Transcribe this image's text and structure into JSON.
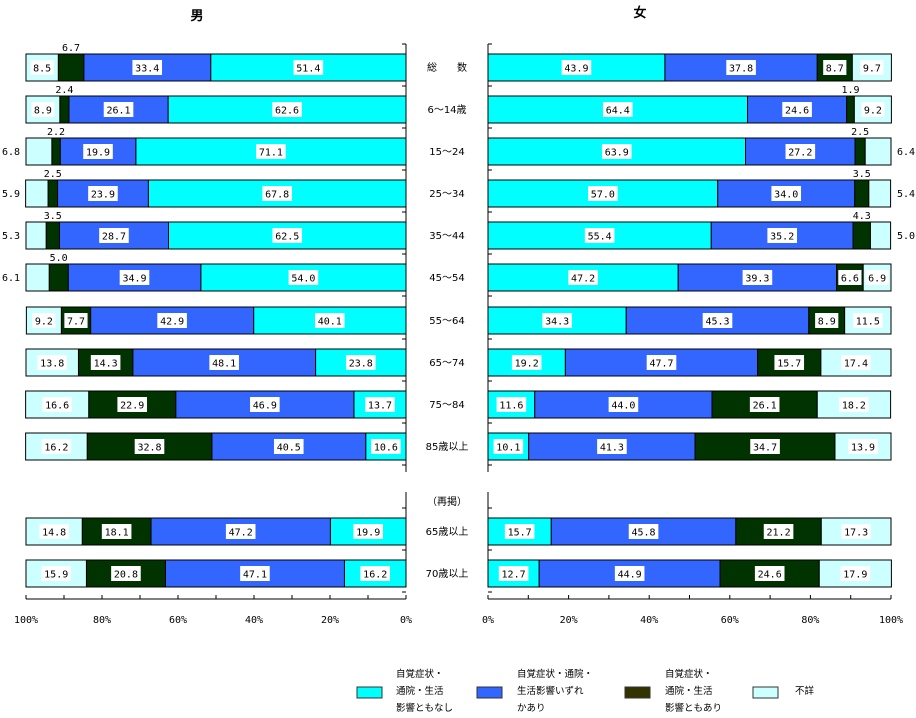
{
  "chart_data": {
    "type": "bar",
    "orientation": "horizontal",
    "stacked": true,
    "percent": true,
    "categories": [
      "総　　数",
      "6〜14歳",
      "15〜24",
      "25〜34",
      "35〜44",
      "45〜54",
      "55〜64",
      "65〜74",
      "75〜84",
      "85歳以上",
      "65歳以上",
      "70歳以上"
    ],
    "group_label": "（再掲）",
    "group_label_before_index": 10,
    "legend_placement": "bottom-right",
    "colors": {
      "none": "#00FFFF",
      "either": "#3366FF",
      "both": "#003300",
      "unknown": "#CCFFFF",
      "legend_both": "#333300"
    },
    "legend": [
      {
        "key": "none",
        "lines": [
          "自覚症状・",
          "通院・生活",
          "影響ともなし"
        ]
      },
      {
        "key": "either",
        "lines": [
          "自覚症状・通院・",
          "生活影響いずれ",
          "かあり"
        ]
      },
      {
        "key": "both",
        "lines": [
          "自覚症状・",
          "通院・生活",
          "影響ともあり"
        ]
      },
      {
        "key": "unknown",
        "lines": [
          "不詳"
        ]
      }
    ],
    "panels": [
      {
        "title": "男",
        "direction": "reversed",
        "xlim": [
          100,
          0
        ],
        "x_tick_labels": [
          "100%",
          "80%",
          "60%",
          "40%",
          "20%",
          "0%"
        ],
        "series": [
          {
            "name": "自覚症状・通院・生活影響ともなし",
            "key": "none",
            "values": [
              51.4,
              62.6,
              71.1,
              67.8,
              62.5,
              54.0,
              40.1,
              23.8,
              13.7,
              10.6,
              19.9,
              16.2
            ]
          },
          {
            "name": "自覚症状・通院・生活影響いずれかあり",
            "key": "either",
            "values": [
              33.4,
              26.1,
              19.9,
              23.9,
              28.7,
              34.9,
              42.9,
              48.1,
              46.9,
              40.5,
              47.2,
              47.1
            ]
          },
          {
            "name": "自覚症状・通院・生活影響ともあり",
            "key": "both",
            "values": [
              6.7,
              2.4,
              2.2,
              2.5,
              3.5,
              5.0,
              7.7,
              14.3,
              22.9,
              32.8,
              18.1,
              20.8
            ]
          },
          {
            "name": "不詳",
            "key": "unknown",
            "values": [
              8.5,
              8.9,
              6.8,
              5.9,
              5.3,
              6.1,
              9.2,
              13.8,
              16.6,
              16.2,
              14.8,
              15.9
            ]
          }
        ]
      },
      {
        "title": "女",
        "direction": "normal",
        "xlim": [
          0,
          100
        ],
        "x_tick_labels": [
          "0%",
          "20%",
          "40%",
          "60%",
          "80%",
          "100%"
        ],
        "series": [
          {
            "name": "自覚症状・通院・生活影響ともなし",
            "key": "none",
            "values": [
              43.9,
              64.4,
              63.9,
              57.0,
              55.4,
              47.2,
              34.3,
              19.2,
              11.6,
              10.1,
              15.7,
              12.7
            ]
          },
          {
            "name": "自覚症状・通院・生活影響いずれかあり",
            "key": "either",
            "values": [
              37.8,
              24.6,
              27.2,
              34.0,
              35.2,
              39.3,
              45.3,
              47.7,
              44.0,
              41.3,
              45.8,
              44.9
            ]
          },
          {
            "name": "自覚症状・通院・生活影響ともあり",
            "key": "both",
            "values": [
              8.7,
              1.9,
              2.5,
              3.5,
              4.3,
              6.6,
              8.9,
              15.7,
              26.1,
              34.7,
              21.2,
              24.6
            ]
          },
          {
            "name": "不詳",
            "key": "unknown",
            "values": [
              9.7,
              9.2,
              6.4,
              5.4,
              5.0,
              6.9,
              11.5,
              17.4,
              18.2,
              13.9,
              17.3,
              17.9
            ]
          }
        ]
      }
    ]
  }
}
